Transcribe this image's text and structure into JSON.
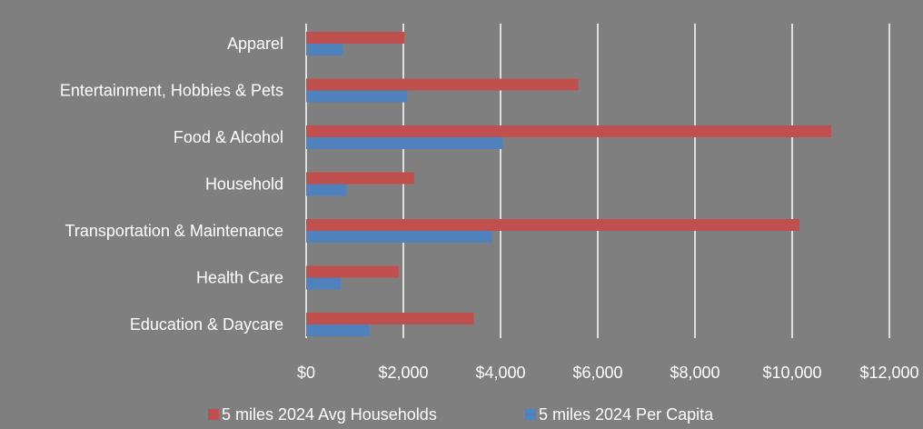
{
  "chart_data": {
    "type": "bar",
    "orientation": "horizontal",
    "title": "",
    "xlabel": "",
    "ylabel": "",
    "categories": [
      "Apparel",
      "Entertainment, Hobbies & Pets",
      "Food & Alcohol",
      "Household",
      "Transportation & Maintenance",
      "Health Care",
      "Education & Daycare"
    ],
    "series": [
      {
        "name": "5 miles 2024 Avg Households",
        "color": "#c0504d",
        "values": [
          2020,
          5600,
          10800,
          2220,
          10150,
          1900,
          3450
        ]
      },
      {
        "name": "5 miles 2024 Per Capita",
        "color": "#4f81bd",
        "values": [
          760,
          2080,
          4050,
          830,
          3820,
          710,
          1300
        ]
      }
    ],
    "xlim": [
      0,
      12000
    ],
    "x_ticks": [
      0,
      2000,
      4000,
      6000,
      8000,
      10000,
      12000
    ],
    "x_tick_labels": [
      "$0",
      "$2,000",
      "$4,000",
      "$6,000",
      "$8,000",
      "$10,000",
      "$12,000"
    ],
    "grid": true,
    "legend_position": "bottom"
  },
  "colors": {
    "background": "#7f7f7f",
    "text": "#ffffff",
    "gridline": "#ffffff"
  }
}
